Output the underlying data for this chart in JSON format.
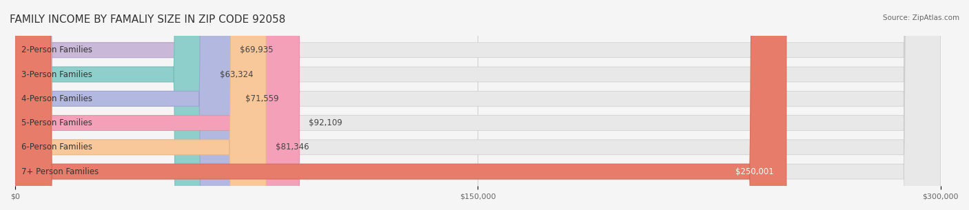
{
  "title": "FAMILY INCOME BY FAMALIY SIZE IN ZIP CODE 92058",
  "source": "Source: ZipAtlas.com",
  "categories": [
    "2-Person Families",
    "3-Person Families",
    "4-Person Families",
    "5-Person Families",
    "6-Person Families",
    "7+ Person Families"
  ],
  "values": [
    69935,
    63324,
    71559,
    92109,
    81346,
    250001
  ],
  "bar_colors": [
    "#c9b8d8",
    "#8ecfcc",
    "#b3b8e0",
    "#f4a0b8",
    "#f8c89a",
    "#e87c6a"
  ],
  "bar_edge_colors": [
    "#b8a5cc",
    "#7abfbc",
    "#9fa4d0",
    "#e890a8",
    "#e8b88a",
    "#d86c5a"
  ],
  "label_colors": [
    "#555555",
    "#555555",
    "#555555",
    "#555555",
    "#555555",
    "#ffffff"
  ],
  "value_labels": [
    "$69,935",
    "$63,324",
    "$71,559",
    "$92,109",
    "$81,346",
    "$250,001"
  ],
  "xlim": [
    0,
    300000
  ],
  "xticks": [
    0,
    150000,
    300000
  ],
  "xticklabels": [
    "$0",
    "$150,000",
    "$300,000"
  ],
  "background_color": "#f5f5f5",
  "bar_background_color": "#e8e8e8",
  "title_fontsize": 11,
  "label_fontsize": 8.5,
  "value_fontsize": 8.5,
  "bar_height": 0.62
}
